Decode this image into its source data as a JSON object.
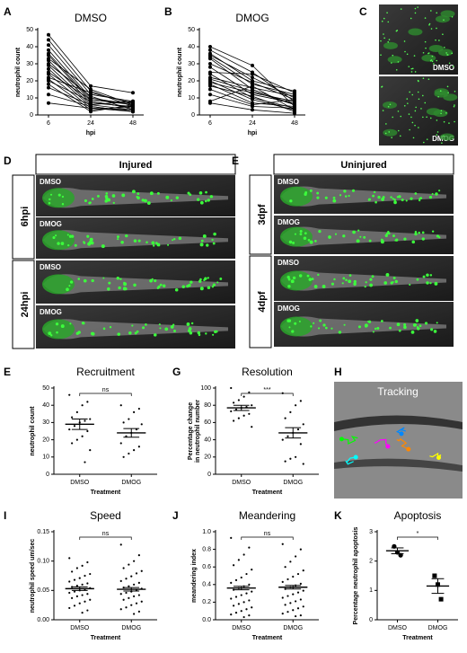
{
  "chart_data": [
    {
      "type": "line",
      "panel": "A",
      "title": "DMSO",
      "ylabel": "neutrophil count",
      "xlabel": "hpi",
      "categories": [
        "6",
        "24",
        "48"
      ],
      "ylim": [
        0,
        50
      ],
      "yticks": [
        0,
        10,
        20,
        30,
        40,
        50
      ],
      "color": "#000000",
      "series": [
        {
          "values": [
            47,
            17,
            13
          ]
        },
        {
          "values": [
            44,
            14,
            5
          ]
        },
        {
          "values": [
            41,
            12,
            8
          ]
        },
        {
          "values": [
            38,
            10,
            6
          ]
        },
        {
          "values": [
            36,
            9,
            7
          ]
        },
        {
          "values": [
            35,
            8,
            4
          ]
        },
        {
          "values": [
            33,
            15,
            6
          ]
        },
        {
          "values": [
            32,
            7,
            5
          ]
        },
        {
          "values": [
            30,
            11,
            3
          ]
        },
        {
          "values": [
            29,
            6,
            8
          ]
        },
        {
          "values": [
            27,
            5,
            2
          ]
        },
        {
          "values": [
            25,
            9,
            6
          ]
        },
        {
          "values": [
            24,
            4,
            3
          ]
        },
        {
          "values": [
            22,
            13,
            7
          ]
        },
        {
          "values": [
            21,
            3,
            5
          ]
        },
        {
          "values": [
            20,
            8,
            4
          ]
        },
        {
          "values": [
            18,
            2,
            6
          ]
        },
        {
          "values": [
            16,
            6,
            3
          ]
        },
        {
          "values": [
            12,
            5,
            2
          ]
        },
        {
          "values": [
            7,
            4,
            2
          ]
        }
      ]
    },
    {
      "type": "line",
      "panel": "B",
      "title": "DMOG",
      "ylabel": "neutrophil count",
      "xlabel": "hpi",
      "categories": [
        "6",
        "24",
        "48"
      ],
      "ylim": [
        0,
        50
      ],
      "yticks": [
        0,
        10,
        20,
        30,
        40,
        50
      ],
      "color": "#000000",
      "series": [
        {
          "values": [
            40,
            29,
            5
          ]
        },
        {
          "values": [
            38,
            25,
            8
          ]
        },
        {
          "values": [
            36,
            20,
            14
          ]
        },
        {
          "values": [
            35,
            22,
            10
          ]
        },
        {
          "values": [
            34,
            18,
            12
          ]
        },
        {
          "values": [
            33,
            15,
            6
          ]
        },
        {
          "values": [
            30,
            19,
            9
          ]
        },
        {
          "values": [
            28,
            12,
            7
          ]
        },
        {
          "values": [
            25,
            24,
            13
          ]
        },
        {
          "values": [
            24,
            10,
            4
          ]
        },
        {
          "values": [
            22,
            16,
            11
          ]
        },
        {
          "values": [
            21,
            14,
            6
          ]
        },
        {
          "values": [
            20,
            9,
            3
          ]
        },
        {
          "values": [
            19,
            13,
            8
          ]
        },
        {
          "values": [
            18,
            7,
            5
          ]
        },
        {
          "values": [
            17,
            11,
            2
          ]
        },
        {
          "values": [
            15,
            6,
            9
          ]
        },
        {
          "values": [
            12,
            5,
            4
          ]
        },
        {
          "values": [
            8,
            17,
            3
          ]
        },
        {
          "values": [
            7,
            3,
            1
          ]
        }
      ]
    },
    {
      "type": "dot",
      "panel": "E",
      "title": "Recruitment",
      "ylabel": "neutrophil count",
      "xlabel": "Treatment",
      "annotation": "ns",
      "categories": [
        "DMSO",
        "DMOG"
      ],
      "ylim": [
        0,
        50
      ],
      "yticks": [
        0,
        10,
        20,
        30,
        40,
        50
      ],
      "color": "#000000",
      "points": [
        [
          46,
          42,
          40,
          36,
          33,
          32,
          31,
          30,
          28,
          26,
          25,
          22,
          20,
          18,
          14,
          7
        ],
        [
          40,
          38,
          36,
          32,
          30,
          29,
          26,
          24,
          22,
          18,
          16,
          14,
          12,
          10
        ]
      ],
      "means": [
        29,
        24
      ],
      "sem": [
        3,
        2.5
      ]
    },
    {
      "type": "dot",
      "panel": "G",
      "title": "Resolution",
      "ylabel": [
        "Percentage change",
        "in neutrophil number"
      ],
      "xlabel": "Treatment",
      "annotation": "***",
      "categories": [
        "DMSO",
        "DMOG"
      ],
      "ylim": [
        0,
        100
      ],
      "yticks": [
        0,
        20,
        40,
        60,
        80,
        100
      ],
      "color": "#000000",
      "points": [
        [
          100,
          95,
          90,
          86,
          83,
          80,
          78,
          77,
          75,
          73,
          70,
          68,
          65,
          62,
          55
        ],
        [
          94,
          85,
          80,
          72,
          65,
          58,
          52,
          48,
          44,
          40,
          35,
          20,
          18,
          15,
          12
        ]
      ],
      "means": [
        77,
        48
      ],
      "sem": [
        3,
        6
      ]
    },
    {
      "type": "dot",
      "panel": "I",
      "title": "Speed",
      "ylabel": "neutrophil speed um/sec",
      "xlabel": "Treatment",
      "annotation": "ns",
      "categories": [
        "DMSO",
        "DMOG"
      ],
      "ylim": [
        0,
        0.15
      ],
      "yticks": [
        {
          "value": 0,
          "label": "0.00"
        },
        0.05,
        {
          "value": 0.1,
          "label": "0.10"
        },
        0.15
      ],
      "color": "#000000",
      "points": [
        [
          0.105,
          0.098,
          0.092,
          0.088,
          0.082,
          0.078,
          0.075,
          0.071,
          0.068,
          0.065,
          0.062,
          0.06,
          0.058,
          0.056,
          0.054,
          0.052,
          0.05,
          0.048,
          0.046,
          0.044,
          0.042,
          0.04,
          0.037,
          0.034,
          0.031,
          0.028,
          0.024,
          0.02,
          0.016,
          0.012
        ],
        [
          0.128,
          0.11,
          0.1,
          0.094,
          0.088,
          0.083,
          0.079,
          0.074,
          0.07,
          0.066,
          0.063,
          0.06,
          0.057,
          0.055,
          0.053,
          0.05,
          0.048,
          0.046,
          0.044,
          0.042,
          0.04,
          0.037,
          0.034,
          0.031,
          0.028,
          0.025,
          0.021,
          0.018,
          0.014,
          0.01
        ]
      ],
      "means": [
        0.053,
        0.052
      ],
      "sem": [
        0.003,
        0.003
      ]
    },
    {
      "type": "dot",
      "panel": "J",
      "title": "Meandering",
      "ylabel": "meandering index",
      "xlabel": "Treatment",
      "annotation": "ns",
      "categories": [
        "DMSO",
        "DMOG"
      ],
      "ylim": [
        0,
        1
      ],
      "yticks": [
        {
          "value": 0,
          "label": "0.0"
        },
        0.2,
        0.4,
        0.6,
        0.8,
        {
          "value": 1,
          "label": "1.0"
        }
      ],
      "color": "#000000",
      "points": [
        [
          0.93,
          0.82,
          0.74,
          0.68,
          0.62,
          0.57,
          0.52,
          0.48,
          0.45,
          0.42,
          0.4,
          0.38,
          0.36,
          0.34,
          0.32,
          0.3,
          0.28,
          0.26,
          0.24,
          0.22,
          0.2,
          0.18,
          0.16,
          0.14,
          0.12,
          0.1,
          0.08,
          0.06,
          0.05,
          0.03
        ],
        [
          0.86,
          0.8,
          0.72,
          0.66,
          0.6,
          0.56,
          0.52,
          0.49,
          0.46,
          0.43,
          0.41,
          0.39,
          0.37,
          0.35,
          0.33,
          0.31,
          0.29,
          0.27,
          0.25,
          0.23,
          0.21,
          0.19,
          0.17,
          0.15,
          0.13,
          0.11,
          0.09,
          0.07,
          0.05,
          0.04
        ]
      ],
      "means": [
        0.36,
        0.37
      ],
      "sem": [
        0.02,
        0.02
      ]
    },
    {
      "type": "dot",
      "panel": "K",
      "title": "Apoptosis",
      "ylabel": "Percentage neutrophil apoptosis",
      "xlabel": "Treatment",
      "annotation": "*",
      "categories": [
        "DMSO",
        "DMOG"
      ],
      "ylim": [
        0,
        3
      ],
      "yticks": [
        0,
        1,
        2,
        3
      ],
      "color": "#000000",
      "markers": [
        "circle",
        "square"
      ],
      "points": [
        [
          2.5,
          2.3,
          2.2
        ],
        [
          1.5,
          1.2,
          0.7
        ]
      ],
      "means": [
        2.35,
        1.15
      ],
      "sem": [
        0.1,
        0.25
      ]
    }
  ],
  "image_panels": [
    {
      "letter": "C",
      "labels": [
        "DMSO",
        "DMOG"
      ]
    },
    {
      "letter": "D",
      "header": "Injured",
      "groups": [
        "6hpi",
        "24hpi"
      ],
      "labels": [
        "DMSO",
        "DMOG",
        "DMSO",
        "DMOG"
      ]
    },
    {
      "letter": "E",
      "header": "Uninjured",
      "groups": [
        "3dpf",
        "4dpf"
      ],
      "labels": [
        "DMSO",
        "DMOG",
        "DMSO",
        "DMOG"
      ]
    },
    {
      "letter": "H",
      "header": "Tracking"
    }
  ]
}
